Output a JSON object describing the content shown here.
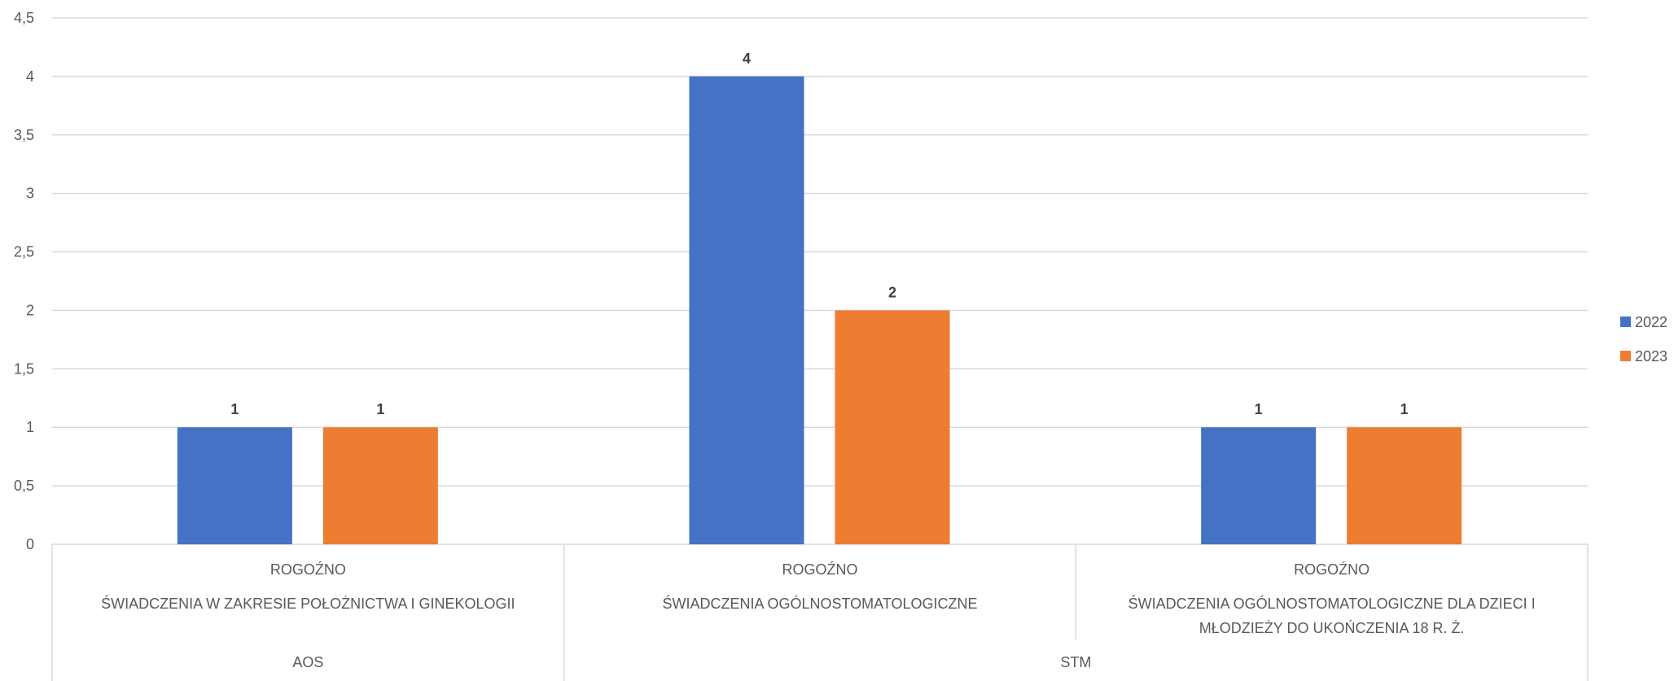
{
  "chart_data": {
    "type": "bar",
    "ylim": [
      0,
      4.5
    ],
    "y_ticks": [
      "0",
      "0,5",
      "1",
      "1,5",
      "2",
      "2,5",
      "3",
      "3,5",
      "4",
      "4,5"
    ],
    "grid": true,
    "legend_position": "right",
    "categories": [
      {
        "place": "ROGOŹNO",
        "service_lines": [
          "ŚWIADCZENIA W ZAKRESIE POŁOŻNICTWA I GINEKOLOGII"
        ],
        "group": "AOS"
      },
      {
        "place": "ROGOŹNO",
        "service_lines": [
          "ŚWIADCZENIA OGÓLNOSTOMATOLOGICZNE"
        ],
        "group": "STM"
      },
      {
        "place": "ROGOŹNO",
        "service_lines": [
          "ŚWIADCZENIA OGÓLNOSTOMATOLOGICZNE DLA DZIECI I",
          "MŁODZIEŻY DO UKOŃCZENIA 18 R. Ż."
        ],
        "group": "STM"
      }
    ],
    "groups": [
      {
        "label": "AOS",
        "span": [
          0,
          0
        ]
      },
      {
        "label": "STM",
        "span": [
          1,
          2
        ]
      }
    ],
    "series": [
      {
        "name": "2022",
        "color": "#4472C4",
        "values": [
          1,
          4,
          1
        ],
        "labels": [
          "1",
          "4",
          "1"
        ]
      },
      {
        "name": "2023",
        "color": "#ED7D31",
        "values": [
          1,
          2,
          1
        ],
        "labels": [
          "1",
          "2",
          "1"
        ]
      }
    ]
  }
}
